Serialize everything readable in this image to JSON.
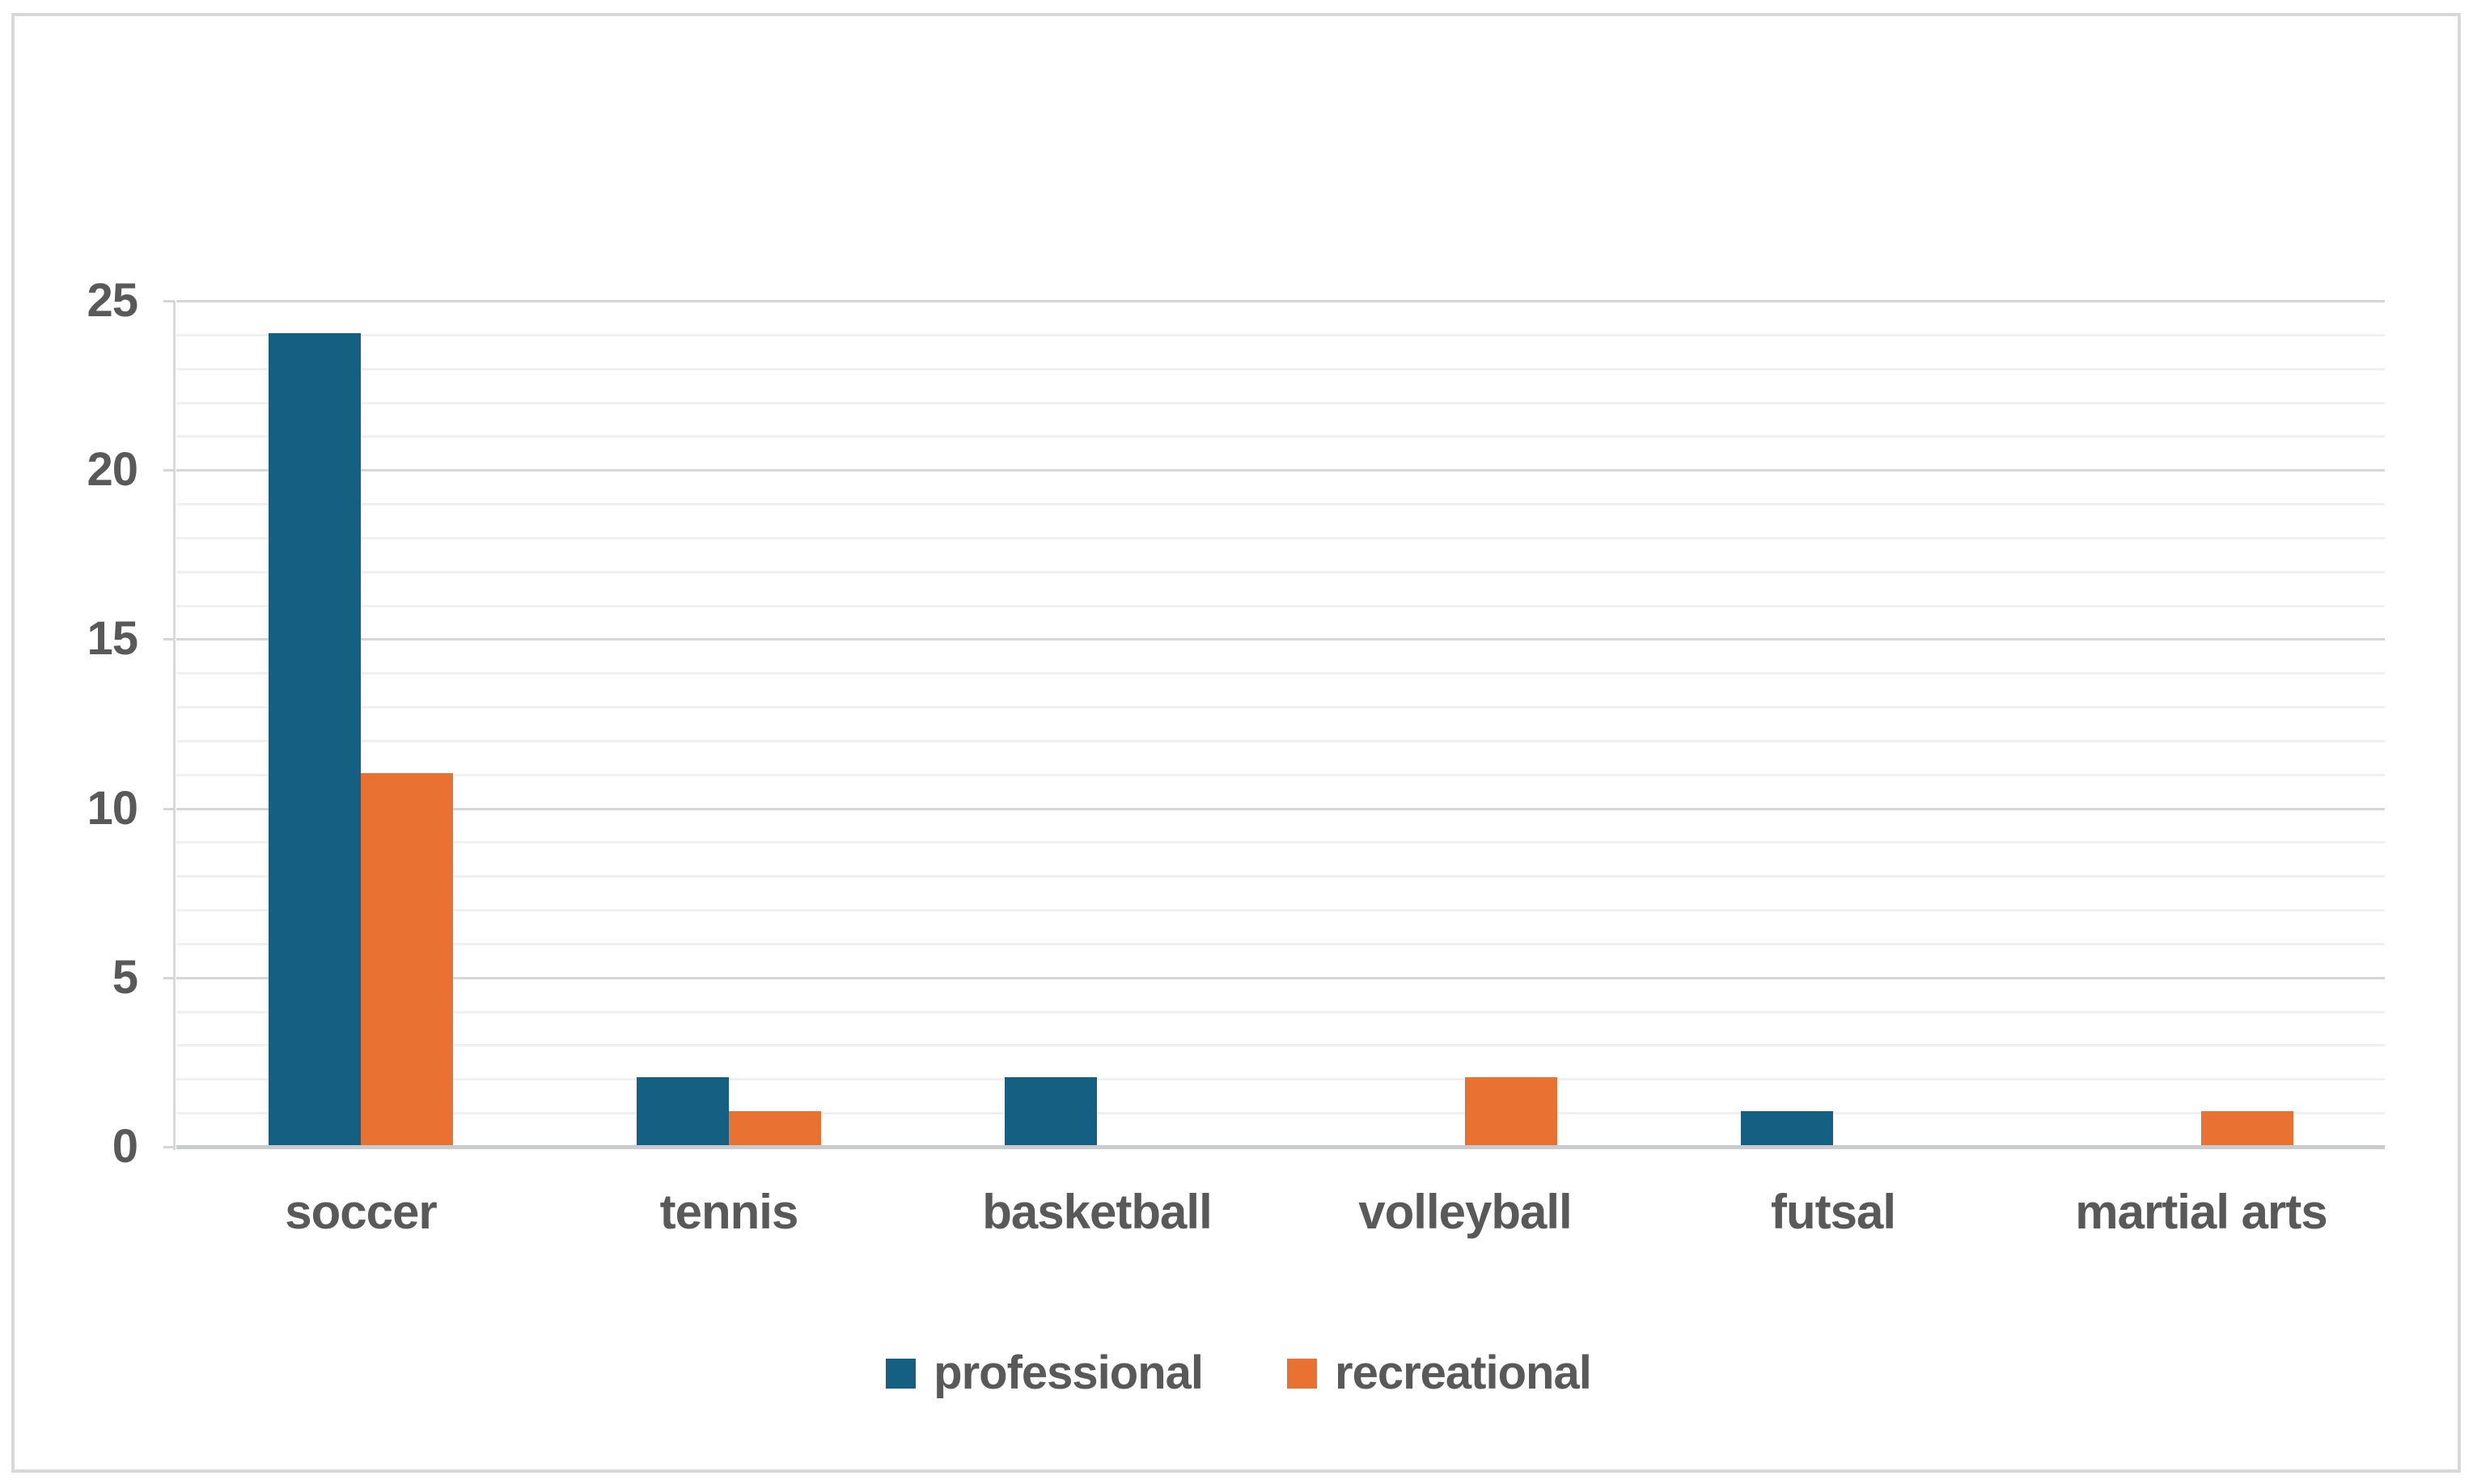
{
  "chart_data": {
    "type": "bar",
    "title": "",
    "xlabel": "",
    "ylabel": "",
    "categories": [
      "soccer",
      "tennis",
      "basketball",
      "volleyball",
      "futsal",
      "martial arts"
    ],
    "series": [
      {
        "name": "professional",
        "color": "#156082",
        "values": [
          24,
          2,
          2,
          0,
          1,
          0
        ]
      },
      {
        "name": "recreational",
        "color": "#E97132",
        "values": [
          11,
          1,
          0,
          2,
          0,
          1
        ]
      }
    ],
    "ylim": [
      0,
      25
    ],
    "y_ticks": [
      0,
      5,
      10,
      15,
      20,
      25
    ],
    "y_minor_unit": 1,
    "grid": true,
    "legend_position": "bottom"
  },
  "colors": {
    "text": "#595959",
    "major_gridline": "#D6D6D6",
    "minor_gridline": "#F0F0F0",
    "x_axis_line": "#C9CCCE",
    "y_axis_line": "#D9D9D9",
    "frame_border": "#D9D9D9",
    "background": "#FFFFFF"
  }
}
